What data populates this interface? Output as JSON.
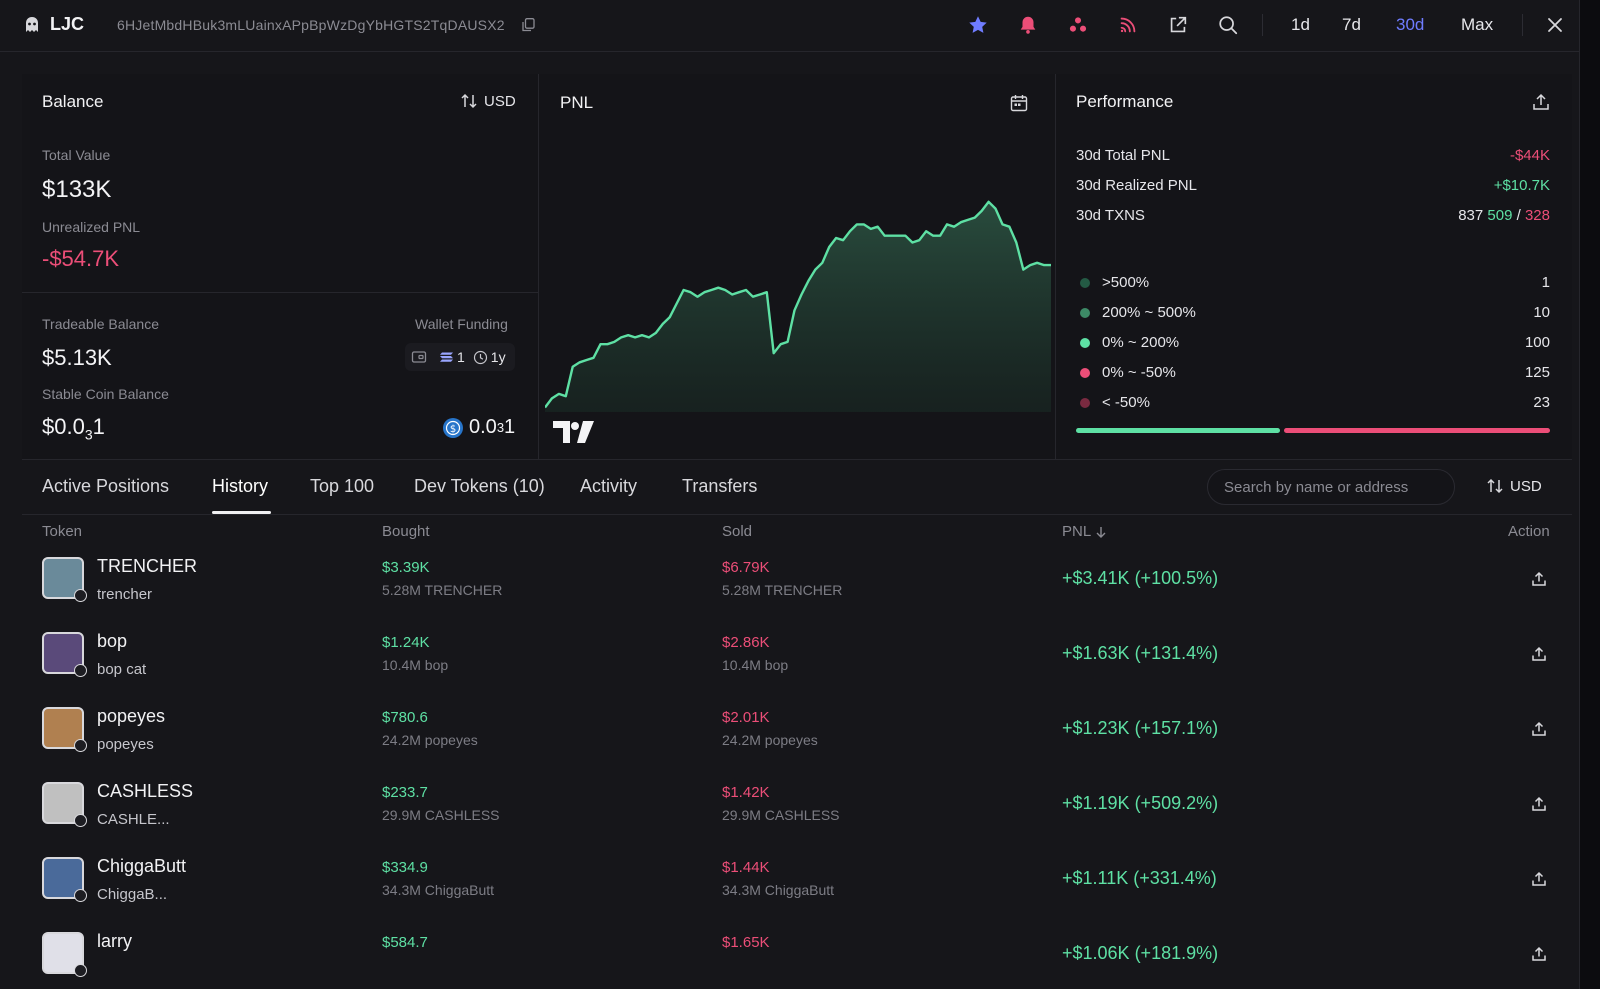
{
  "header": {
    "wallet_name": "LJC",
    "address": "6HJetMbdHBuk3mLUainxAPpBpWzDgYbHGTS2TqDAUSX2",
    "ranges": [
      "1d",
      "7d",
      "30d",
      "Max"
    ],
    "active_range": "30d"
  },
  "balance": {
    "title": "Balance",
    "currency_toggle": "USD",
    "total_value_label": "Total Value",
    "total_value": "$133K",
    "unrealized_label": "Unrealized PNL",
    "unrealized": "-$54.7K",
    "tradeable_label": "Tradeable Balance",
    "tradeable": "$5.13K",
    "funding_label": "Wallet Funding",
    "funding_count": "1",
    "funding_age": "1y",
    "stable_label": "Stable Coin Balance",
    "stable_main": "$0.0",
    "stable_sub": "3",
    "stable_tail": "1",
    "stable_coin_main": "0.0",
    "stable_coin_sub": "3",
    "stable_coin_tail": "1"
  },
  "pnl": {
    "title": "PNL",
    "series": [
      0.02,
      0.06,
      0.08,
      0.07,
      0.2,
      0.22,
      0.23,
      0.24,
      0.3,
      0.3,
      0.31,
      0.33,
      0.34,
      0.33,
      0.34,
      0.33,
      0.35,
      0.39,
      0.42,
      0.48,
      0.54,
      0.53,
      0.51,
      0.53,
      0.54,
      0.55,
      0.54,
      0.52,
      0.53,
      0.54,
      0.51,
      0.52,
      0.53,
      0.26,
      0.3,
      0.31,
      0.45,
      0.52,
      0.58,
      0.63,
      0.66,
      0.73,
      0.77,
      0.76,
      0.8,
      0.83,
      0.83,
      0.81,
      0.82,
      0.78,
      0.78,
      0.78,
      0.78,
      0.75,
      0.76,
      0.8,
      0.78,
      0.78,
      0.83,
      0.82,
      0.84,
      0.85,
      0.86,
      0.89,
      0.93,
      0.9,
      0.83,
      0.82,
      0.75,
      0.63,
      0.65,
      0.66,
      0.65,
      0.65
    ]
  },
  "performance": {
    "title": "Performance",
    "total_label": "30d Total PNL",
    "total": "-$44K",
    "realized_label": "30d Realized PNL",
    "realized": "+$10.7K",
    "txns_label": "30d TXNS",
    "txns_total": "837",
    "txns_buy": "509",
    "txns_sell": "328",
    "buckets": [
      {
        "label": ">500%",
        "count": "1",
        "color": "#245a44"
      },
      {
        "label": "200% ~ 500%",
        "count": "10",
        "color": "#3d8a66"
      },
      {
        "label": "0% ~ 200%",
        "count": "100",
        "color": "#5ee0a4"
      },
      {
        "label": "0% ~ -50%",
        "count": "125",
        "color": "#ec4e78"
      },
      {
        "label": "< -50%",
        "count": "23",
        "color": "#7a2a40"
      }
    ],
    "win_fraction": 0.43
  },
  "tabs": [
    "Active Positions",
    "History",
    "Top 100",
    "Dev Tokens (10)",
    "Activity",
    "Transfers"
  ],
  "active_tab": "History",
  "search": {
    "placeholder": "Search by name or address"
  },
  "table_currency": "USD",
  "columns": {
    "token": "Token",
    "bought": "Bought",
    "sold": "Sold",
    "pnl": "PNL",
    "action": "Action"
  },
  "rows": [
    {
      "name": "TRENCHER",
      "sub": "trencher",
      "bought_usd": "$3.39K",
      "bought_amt": "5.28M TRENCHER",
      "sold_usd": "$6.79K",
      "sold_amt": "5.28M TRENCHER",
      "pnl": "+$3.41K (+100.5%)"
    },
    {
      "name": "bop",
      "sub": "bop cat",
      "bought_usd": "$1.24K",
      "bought_amt": "10.4M bop",
      "sold_usd": "$2.86K",
      "sold_amt": "10.4M bop",
      "pnl": "+$1.63K (+131.4%)"
    },
    {
      "name": "popeyes",
      "sub": "popeyes",
      "bought_usd": "$780.6",
      "bought_amt": "24.2M popeyes",
      "sold_usd": "$2.01K",
      "sold_amt": "24.2M popeyes",
      "pnl": "+$1.23K (+157.1%)"
    },
    {
      "name": "CASHLESS",
      "sub": "CASHLE...",
      "bought_usd": "$233.7",
      "bought_amt": "29.9M CASHLESS",
      "sold_usd": "$1.42K",
      "sold_amt": "29.9M CASHLESS",
      "pnl": "+$1.19K (+509.2%)"
    },
    {
      "name": "ChiggaButt",
      "sub": "ChiggaB...",
      "bought_usd": "$334.9",
      "bought_amt": "34.3M ChiggaButt",
      "sold_usd": "$1.44K",
      "sold_amt": "34.3M ChiggaButt",
      "pnl": "+$1.11K (+331.4%)"
    },
    {
      "name": "larry",
      "sub": "",
      "bought_usd": "$584.7",
      "bought_amt": "",
      "sold_usd": "$1.65K",
      "sold_amt": "",
      "pnl": "+$1.06K (+181.9%)"
    }
  ]
}
